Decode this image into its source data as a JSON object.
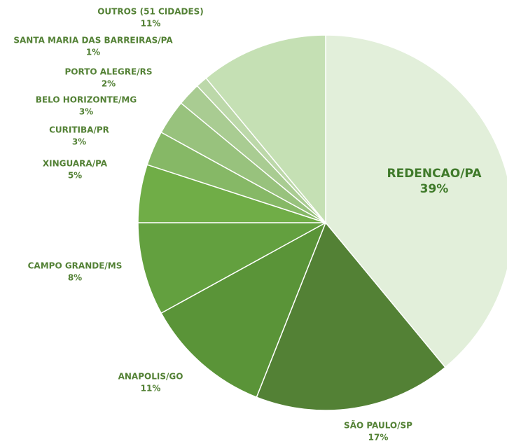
{
  "chart_data": {
    "type": "pie",
    "categories": [
      "REDENCAO/PA",
      "SÃO PAULO/SP",
      "ANAPOLIS/GO",
      "CAMPO GRANDE/MS",
      "XINGUARA/PA",
      "CURITIBA/PR",
      "BELO HORIZONTE/MG",
      "PORTO ALEGRE/RS",
      "SANTA MARIA DAS BARREIRAS/PA",
      "OUTROS (51 CIDADES)"
    ],
    "values": [
      39,
      17,
      11,
      8,
      5,
      3,
      3,
      2,
      1,
      11
    ],
    "value_labels": [
      "39%",
      "17%",
      "11%",
      "8%",
      "5%",
      "3%",
      "3%",
      "2%",
      "1%",
      "11%"
    ],
    "colors": [
      "#e2efda",
      "#538135",
      "#5a9438",
      "#63a03f",
      "#70ad47",
      "#86b866",
      "#98c27d",
      "#a9cc92",
      "#bcd8a9",
      "#c5e0b4"
    ]
  }
}
